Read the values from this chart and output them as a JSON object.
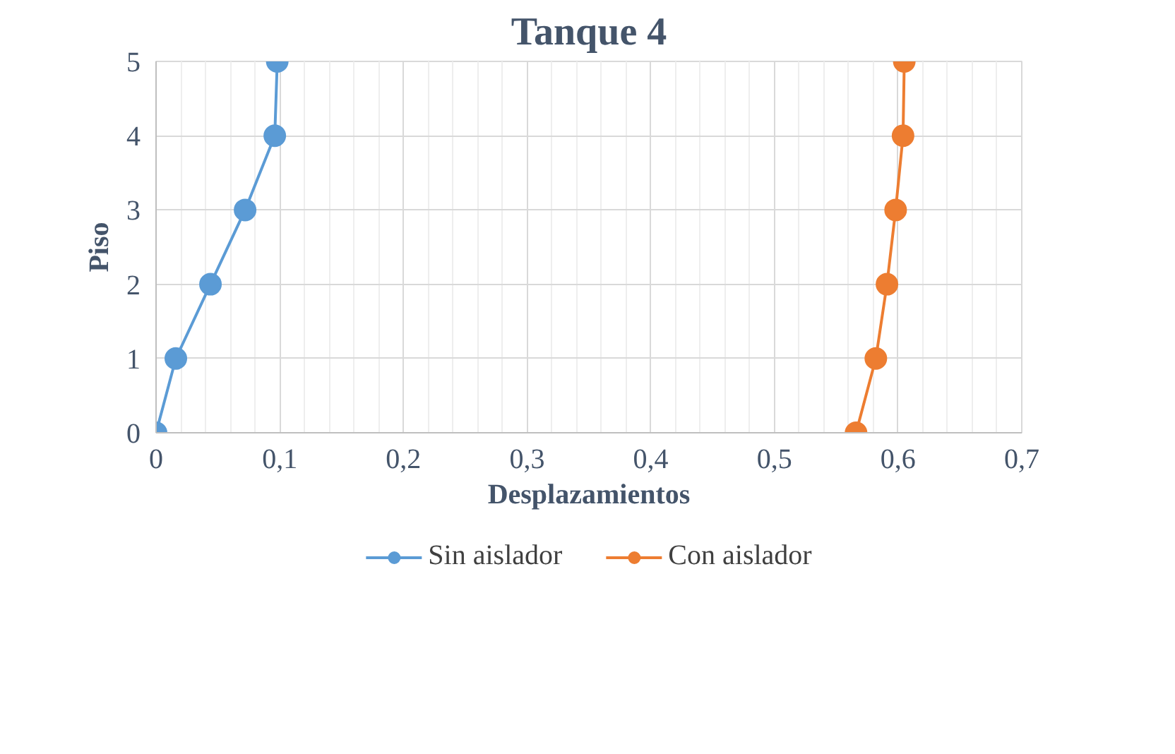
{
  "chart_data": {
    "type": "line",
    "title": "Tanque 4",
    "xlabel": "Desplazamientos",
    "ylabel": "Piso",
    "xlim": [
      0,
      0.7
    ],
    "xticks": [
      {
        "value": 0,
        "label": "0"
      },
      {
        "value": 0.1,
        "label": "0,1"
      },
      {
        "value": 0.2,
        "label": "0,2"
      },
      {
        "value": 0.3,
        "label": "0,3"
      },
      {
        "value": 0.4,
        "label": "0,4"
      },
      {
        "value": 0.5,
        "label": "0,5"
      },
      {
        "value": 0.6,
        "label": "0,6"
      },
      {
        "value": 0.7,
        "label": "0,7"
      }
    ],
    "ylim": [
      0,
      5
    ],
    "yticks": [
      0,
      1,
      2,
      3,
      4,
      5
    ],
    "grid": true,
    "legend": "bottom",
    "marker": "circle",
    "line_style": "solid",
    "series": [
      {
        "name": "Sin aislador",
        "color": "#5b9bd5",
        "x": [
          0,
          0.016,
          0.044,
          0.072,
          0.096,
          0.098
        ],
        "values": [
          0,
          1,
          2,
          3,
          4,
          5
        ]
      },
      {
        "name": "Con aislador",
        "color": "#ed7d31",
        "x": [
          0.566,
          0.582,
          0.591,
          0.598,
          0.604,
          0.605
        ],
        "values": [
          0,
          1,
          2,
          3,
          4,
          5
        ]
      }
    ]
  }
}
